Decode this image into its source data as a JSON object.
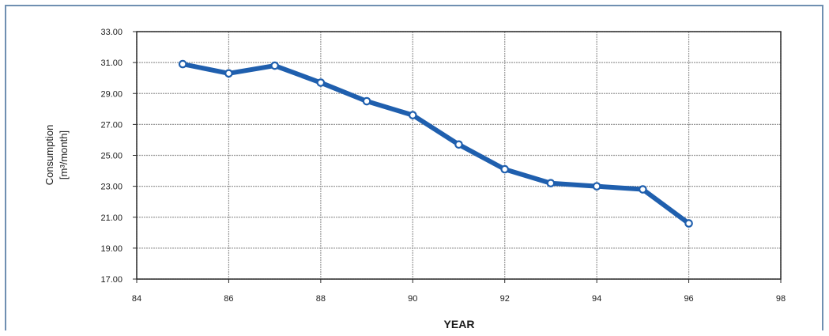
{
  "chart_data": {
    "type": "line",
    "title": "",
    "xlabel": "YEAR",
    "ylabel_lines": [
      "Consumption",
      "[m³/month]"
    ],
    "x": [
      85,
      86,
      87,
      88,
      89,
      90,
      91,
      92,
      93,
      94,
      95,
      96
    ],
    "series": [
      {
        "values": [
          30.9,
          30.3,
          30.8,
          29.7,
          28.5,
          27.6,
          25.7,
          24.1,
          23.2,
          23.0,
          22.8,
          20.6
        ],
        "color": "#1f5fae"
      }
    ],
    "xlim": [
      84,
      98
    ],
    "ylim": [
      17,
      33
    ],
    "x_ticks": [
      84,
      86,
      88,
      90,
      92,
      94,
      96,
      98
    ],
    "x_tick_labels": [
      "84",
      "86",
      "88",
      "90",
      "92",
      "94",
      "96",
      "98"
    ],
    "y_ticks": [
      17,
      19,
      21,
      23,
      25,
      27,
      29,
      31,
      33
    ],
    "y_tick_labels": [
      "17.00",
      "19.00",
      "21.00",
      "23.00",
      "25.00",
      "27.00",
      "29.00",
      "31.00",
      "33.00"
    ],
    "grid": true,
    "legend": "none",
    "colors": {
      "line": "#1f5fae",
      "marker_fill": "#ffffff",
      "grid": "#9a9a9a",
      "axis": "#2a2a2a",
      "frame": "#6f8fb1"
    }
  }
}
